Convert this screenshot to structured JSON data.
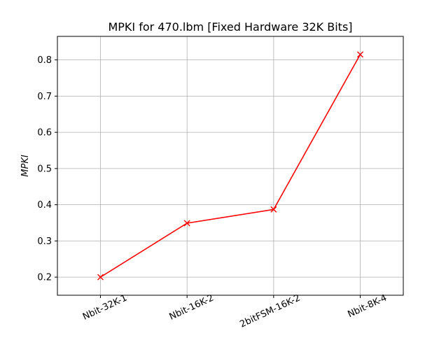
{
  "chart_data": {
    "type": "line",
    "title": "MPKI for 470.lbm [Fixed Hardware 32K Bits]",
    "xlabel": "",
    "ylabel": "MPKI",
    "categories": [
      "Nbit-32K-1",
      "Nbit-16K-2",
      "2bitFSM-16K-2",
      "Nbit-8K-4"
    ],
    "series": [
      {
        "values": [
          0.2,
          0.349,
          0.387,
          0.815
        ]
      }
    ],
    "ylim": [
      0.15,
      0.865
    ],
    "yticks": [
      0.2,
      0.3,
      0.4,
      0.5,
      0.6,
      0.7,
      0.8
    ],
    "ytick_labels": [
      "0.2",
      "0.3",
      "0.4",
      "0.5",
      "0.6",
      "0.7",
      "0.8"
    ],
    "grid": true,
    "marker": "x",
    "line_color": "#ff0000"
  }
}
